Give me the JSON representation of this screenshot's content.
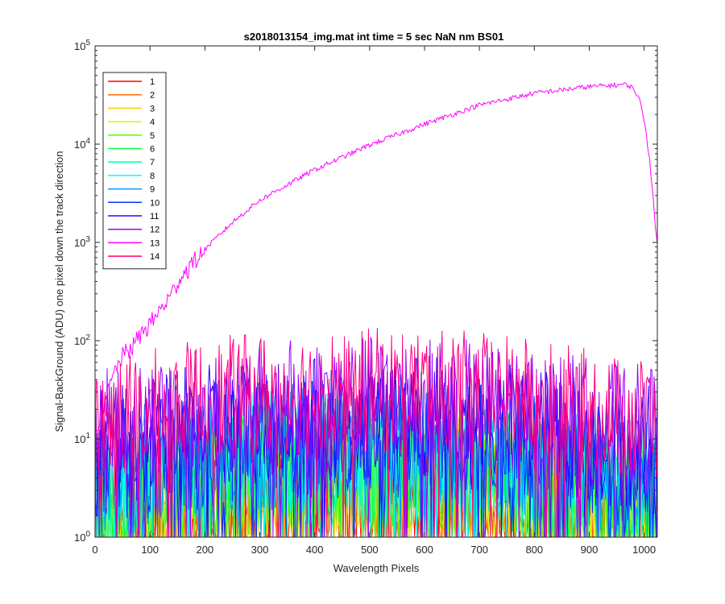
{
  "chart_data": {
    "type": "line",
    "title": "s2018013154_img.mat int time = 5 sec  NaN nm BS01",
    "xlabel": "Wavelength Pixels",
    "ylabel": "Signal-BackGround (ADU) one pixel down the track direction",
    "xlim": [
      0,
      1024
    ],
    "ylim": [
      1,
      100000
    ],
    "yscale": "log",
    "x_ticks": [
      0,
      100,
      200,
      300,
      400,
      500,
      600,
      700,
      800,
      900,
      1000
    ],
    "y_ticks": [
      {
        "base": "10",
        "exp": "0",
        "value": 1
      },
      {
        "base": "10",
        "exp": "1",
        "value": 10
      },
      {
        "base": "10",
        "exp": "2",
        "value": 100
      },
      {
        "base": "10",
        "exp": "3",
        "value": 1000
      },
      {
        "base": "10",
        "exp": "4",
        "value": 10000
      },
      {
        "base": "10",
        "exp": "5",
        "value": 100000
      }
    ],
    "grid": false,
    "legend_position": "top-left",
    "series": [
      {
        "name": "1",
        "color": "#ff0000",
        "kind": "noise",
        "level": 1.5
      },
      {
        "name": "2",
        "color": "#ff6a00",
        "kind": "noise",
        "level": 2.0
      },
      {
        "name": "3",
        "color": "#ffcc00",
        "kind": "noise",
        "level": 2.5
      },
      {
        "name": "4",
        "color": "#bfff00",
        "kind": "noise",
        "level": 3.0
      },
      {
        "name": "5",
        "color": "#55ff00",
        "kind": "noise",
        "level": 3.5
      },
      {
        "name": "6",
        "color": "#00ff40",
        "kind": "noise",
        "level": 4.0
      },
      {
        "name": "7",
        "color": "#00ffaa",
        "kind": "noise",
        "level": 4.5
      },
      {
        "name": "8",
        "color": "#00ffff",
        "kind": "noise",
        "level": 5.5
      },
      {
        "name": "9",
        "color": "#0099ff",
        "kind": "noise",
        "level": 6.5
      },
      {
        "name": "10",
        "color": "#0033ff",
        "kind": "noise",
        "level": 8.0
      },
      {
        "name": "11",
        "color": "#3300ff",
        "kind": "noise",
        "level": 12
      },
      {
        "name": "12",
        "color": "#9900ff",
        "kind": "noise",
        "level": 18
      },
      {
        "name": "13",
        "color": "#ff00ff",
        "kind": "signal",
        "x": [
          0,
          20,
          30,
          40,
          50,
          60,
          70,
          80,
          90,
          100,
          120,
          140,
          150,
          175,
          200,
          250,
          300,
          400,
          500,
          600,
          700,
          800,
          900,
          950,
          960,
          970,
          980,
          990,
          1000,
          1010,
          1015,
          1020,
          1024
        ],
        "y": [
          12,
          25,
          40,
          55,
          70,
          80,
          90,
          110,
          130,
          150,
          210,
          300,
          400,
          600,
          850,
          1600,
          2700,
          5500,
          9800,
          16000,
          25000,
          33000,
          38500,
          40000,
          40500,
          40000,
          37000,
          30000,
          18000,
          7000,
          3500,
          1500,
          950
        ]
      },
      {
        "name": "14",
        "color": "#ff0080",
        "kind": "noise",
        "level": 22
      }
    ]
  }
}
